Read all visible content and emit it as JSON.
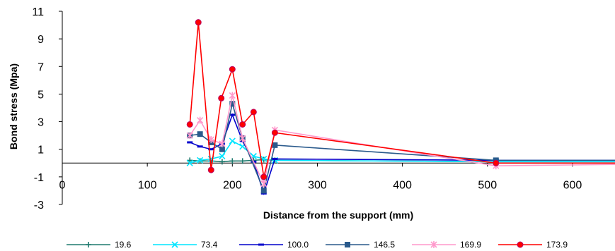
{
  "chart_data": {
    "type": "line",
    "xlabel": "Distance from the support (mm)",
    "ylabel": "Bond stress (Mpa)",
    "xlim": [
      0,
      650
    ],
    "ylim": [
      -3,
      11
    ],
    "xticks": [
      0,
      100,
      200,
      300,
      400,
      500,
      600
    ],
    "yticks": [
      -3,
      -1,
      1,
      3,
      5,
      7,
      9,
      11
    ],
    "xtick_labels": [
      "0",
      "100",
      "200",
      "300",
      "400",
      "500",
      "600"
    ],
    "ytick_labels": [
      "-3",
      "-1",
      "1",
      "3",
      "5",
      "7",
      "9",
      "11"
    ],
    "grid": false,
    "legend_position": "bottom",
    "series": [
      {
        "name": "19.6",
        "color": "#1e7a6e",
        "marker": "plus",
        "x": [
          150,
          162,
          175,
          188,
          200,
          212,
          225,
          237,
          250,
          510,
          650
        ],
        "y": [
          0.2,
          0.15,
          0.15,
          0.1,
          0.15,
          0.15,
          0.2,
          0.25,
          0.2,
          0.1,
          0.1
        ]
      },
      {
        "name": "73.4",
        "color": "#00e5ff",
        "marker": "x",
        "x": [
          150,
          162,
          175,
          188,
          200,
          212,
          225,
          237,
          250,
          510,
          650
        ],
        "y": [
          0.0,
          0.2,
          0.3,
          0.5,
          1.6,
          1.2,
          0.5,
          0.3,
          0.2,
          0.1,
          0.1
        ]
      },
      {
        "name": "100.0",
        "color": "#0000cc",
        "marker": "dash",
        "x": [
          150,
          162,
          175,
          188,
          200,
          212,
          225,
          237,
          250,
          510,
          650
        ],
        "y": [
          1.5,
          1.2,
          1.0,
          1.4,
          3.5,
          1.6,
          0.1,
          -2.2,
          0.3,
          0.2,
          0.2
        ]
      },
      {
        "name": "146.5",
        "color": "#2a5a8c",
        "marker": "square",
        "x": [
          150,
          162,
          175,
          188,
          200,
          212,
          237,
          250,
          510,
          650
        ],
        "y": [
          2.0,
          2.1,
          1.5,
          1.0,
          4.3,
          1.8,
          -2.0,
          1.3,
          0.2,
          0.2
        ]
      },
      {
        "name": "169.9",
        "color": "#ff99cc",
        "marker": "star",
        "x": [
          150,
          162,
          175,
          188,
          200,
          212,
          237,
          250,
          510,
          650
        ],
        "y": [
          2.0,
          3.1,
          1.7,
          1.4,
          4.9,
          1.8,
          -1.5,
          2.4,
          -0.2,
          -0.1
        ]
      },
      {
        "name": "173.9",
        "color": "#ff0000",
        "marker": "circle",
        "x": [
          150,
          160,
          175,
          187,
          200,
          212,
          225,
          237,
          250,
          510,
          650
        ],
        "y": [
          2.8,
          10.2,
          -0.5,
          4.7,
          6.8,
          2.8,
          3.7,
          -1.0,
          2.2,
          0.0,
          0.0
        ]
      }
    ]
  }
}
